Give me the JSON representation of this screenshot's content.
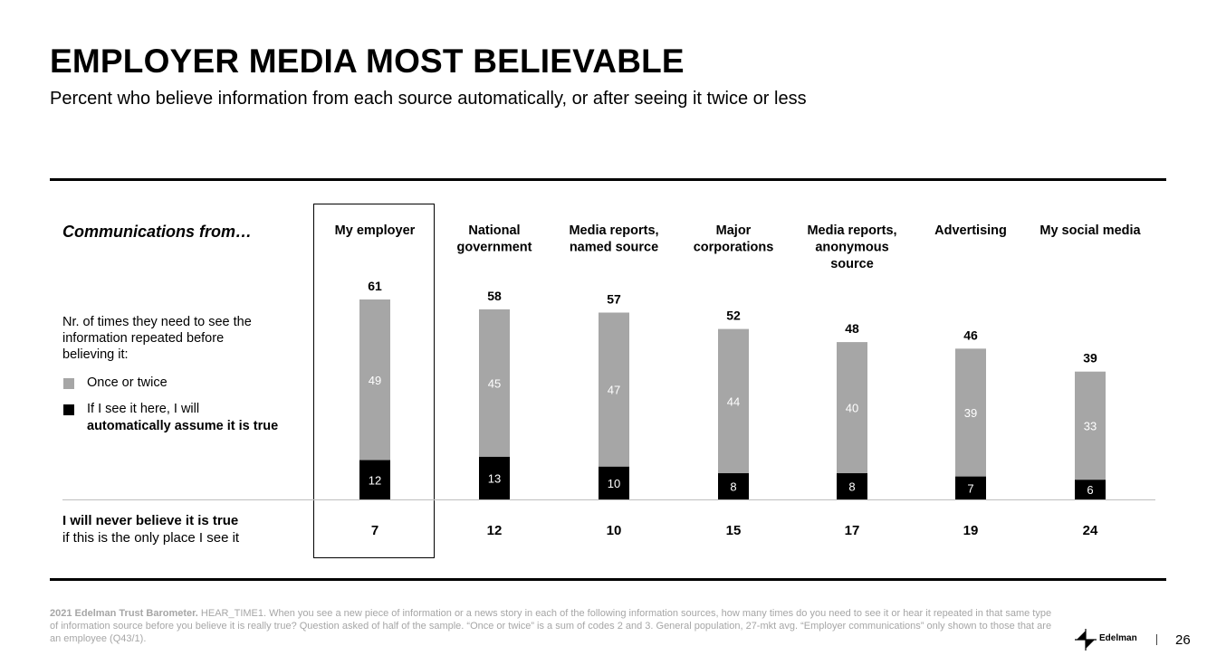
{
  "header": {
    "title": "EMPLOYER MEDIA MOST BELIEVABLE",
    "subtitle": "Percent who believe information from each source automatically, or after seeing it twice or less"
  },
  "left_panel": {
    "communications_label": "Communications from…",
    "legend_title": "Nr. of times they need to see the information repeated before believing it:",
    "legend_once": "Once or twice",
    "legend_auto_line1": "If I see it here, I will",
    "legend_auto_line2": "automatically assume it is true",
    "never_bold": "I will never believe it is true",
    "never_rest": "if this is the only place I see it"
  },
  "colors": {
    "once": "#a6a6a6",
    "automatic": "#000000",
    "baseline": "#bfbfbf"
  },
  "chart_data": {
    "type": "bar",
    "stacked": true,
    "categories": [
      [
        "My employer"
      ],
      [
        "National",
        "government"
      ],
      [
        "Media reports,",
        "named source"
      ],
      [
        "Major",
        "corporations"
      ],
      [
        "Media reports,",
        "anonymous",
        "source"
      ],
      [
        "Advertising"
      ],
      [
        "My social media"
      ]
    ],
    "series": [
      {
        "name": "If I see it here, I will automatically assume it is true",
        "values": [
          12,
          13,
          10,
          8,
          8,
          7,
          6
        ]
      },
      {
        "name": "Once or twice",
        "values": [
          49,
          45,
          47,
          44,
          40,
          39,
          33
        ]
      }
    ],
    "totals": [
      61,
      58,
      57,
      52,
      48,
      46,
      39
    ],
    "never_believe": [
      7,
      12,
      10,
      15,
      17,
      19,
      24
    ],
    "highlighted_category": "My employer",
    "ylim": [
      0,
      61
    ],
    "grid": false,
    "legend": "left"
  },
  "footer": {
    "source_bold": "2021 Edelman Trust Barometer.",
    "source_text": " HEAR_TIME1. When you see a new piece of information or a news story in each of the following information sources, how many times do you need to see it or hear it repeated in that same type of information source before you believe it is really true? Question asked of half of the sample. “Once or twice” is a sum of codes 2 and 3. General population, 27-mkt avg. “Employer communications” only shown to those that are an employee (Q43/1)."
  },
  "brand": {
    "name": "Edelman",
    "icon": "edelman-logo-icon"
  },
  "page_number": "26"
}
